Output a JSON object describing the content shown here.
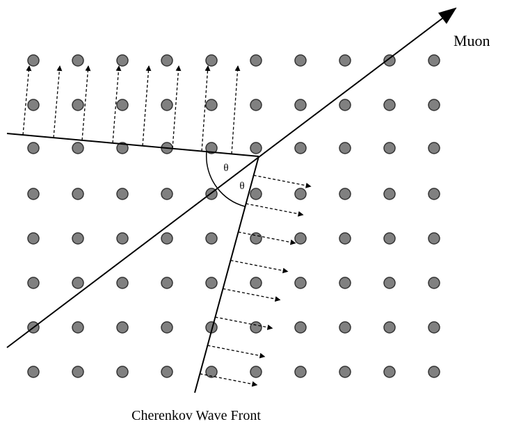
{
  "labels": {
    "muon": "Muon",
    "angle_1": "θ",
    "angle_2": "θ",
    "wave_front": "Cherenkov Wave Front"
  }
}
